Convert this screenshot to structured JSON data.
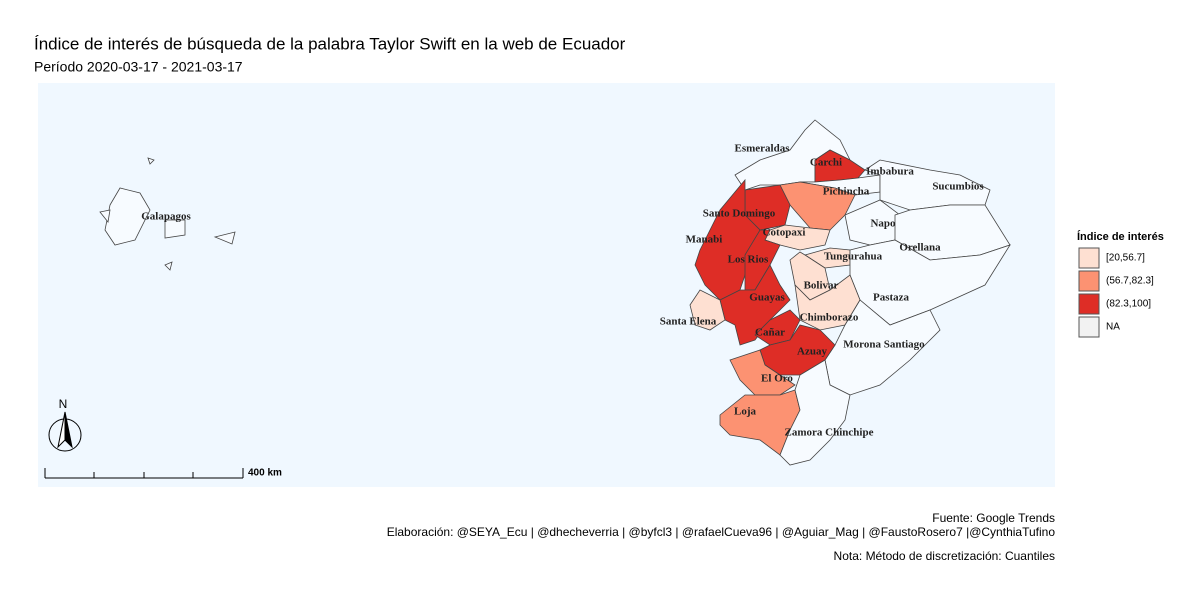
{
  "title": "Índice de interés de búsqueda de la palabra Taylor Swift en la web de Ecuador",
  "subtitle": "Período  2020-03-17 - 2021-03-17",
  "map": {
    "xlim": [
      -90.57,
      -74.87
    ],
    "ylim": [
      -5.25,
      2.04
    ],
    "xticks": [
      {
        "value": -90,
        "label": "90°W"
      },
      {
        "value": -85,
        "label": "85°W"
      },
      {
        "value": -80,
        "label": "80°W"
      },
      {
        "value": -75,
        "label": "75°W"
      }
    ],
    "yticks": [
      {
        "value": 2,
        "label": "2°N"
      },
      {
        "value": 1,
        "label": "1°N"
      },
      {
        "value": 0,
        "label": "0°"
      },
      {
        "value": -1,
        "label": "1°S"
      },
      {
        "value": -2,
        "label": "2°S"
      },
      {
        "value": -3,
        "label": "3°S"
      },
      {
        "value": -4,
        "label": "4°S"
      },
      {
        "value": -5,
        "label": "5°S"
      }
    ],
    "regions": [
      {
        "name": "Esmeraldas",
        "color": "#f7fbff"
      },
      {
        "name": "Carchi",
        "color": "#de2d26"
      },
      {
        "name": "Imbabura",
        "color": "#f7fbff"
      },
      {
        "name": "Sucumbios",
        "color": "#f7fbff"
      },
      {
        "name": "Pichincha",
        "color": "#fc9272"
      },
      {
        "name": "Santo Domingo",
        "color": "#de2d26"
      },
      {
        "name": "Manabi",
        "color": "#de2d26"
      },
      {
        "name": "Napo",
        "color": "#f7fbff"
      },
      {
        "name": "Orellana",
        "color": "#f7fbff"
      },
      {
        "name": "Cotopaxi",
        "color": "#fee0d2"
      },
      {
        "name": "Los Rios",
        "color": "#de2d26"
      },
      {
        "name": "Tungurahua",
        "color": "#fee0d2"
      },
      {
        "name": "Bolivar",
        "color": "#fee0d2"
      },
      {
        "name": "Pastaza",
        "color": "#f7fbff"
      },
      {
        "name": "Guayas",
        "color": "#de2d26"
      },
      {
        "name": "Santa Elena",
        "color": "#fee0d2"
      },
      {
        "name": "Chimborazo",
        "color": "#fee0d2"
      },
      {
        "name": "Cañar",
        "color": "#de2d26"
      },
      {
        "name": "Morona Santiago",
        "color": "#f7fbff"
      },
      {
        "name": "Azuay",
        "color": "#de2d26"
      },
      {
        "name": "El Oro",
        "color": "#fc9272"
      },
      {
        "name": "Loja",
        "color": "#fc9272"
      },
      {
        "name": "Zamora Chinchipe",
        "color": "#f7fbff"
      },
      {
        "name": "Galapagos",
        "color": "#f7fbff"
      }
    ]
  },
  "legend": {
    "title": "Índice de interés",
    "items": [
      {
        "label": "[20,56.7]",
        "color": "#fee0d2"
      },
      {
        "label": "(56.7,82.3]",
        "color": "#fc9272"
      },
      {
        "label": "(82.3,100]",
        "color": "#de2d26"
      },
      {
        "label": "NA",
        "color": "#f2f2f2"
      }
    ]
  },
  "scale_bar": "400 km",
  "north": "N",
  "caption": {
    "source": "Fuente: Google Trends",
    "credits": "Elaboración:  @SEYA_Ecu | @dhecheverria | @byfcl3 | @rafaelCueva96 | @Aguiar_Mag | @FaustoRosero7 |@CynthiaTufino",
    "note": "Nota: Método de discretización: Cuantiles"
  }
}
